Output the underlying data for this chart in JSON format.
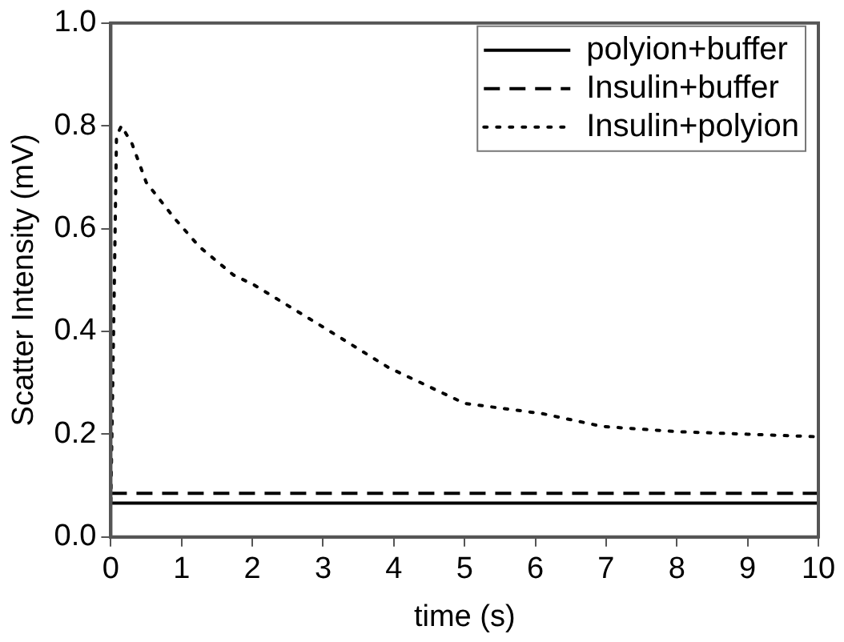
{
  "chart_data": {
    "type": "line",
    "xlabel": "time (s)",
    "ylabel": "Scatter Intensity (mV)",
    "xlim": [
      0,
      10
    ],
    "xticks": [
      0,
      1,
      2,
      3,
      4,
      5,
      6,
      7,
      8,
      9,
      10
    ],
    "ylim": [
      0,
      1
    ],
    "yticks": [
      {
        "value": 0,
        "label": "0.0"
      },
      0.2,
      0.4,
      0.6,
      0.8,
      {
        "value": 1,
        "label": "1.0"
      }
    ],
    "legend": "top right",
    "grid": false,
    "marker": "none",
    "series": [
      {
        "name": "polyion+buffer",
        "color": "#000000",
        "line_style": "solid",
        "x": [
          0,
          10
        ],
        "values": [
          0.066,
          0.066
        ]
      },
      {
        "name": "Insulin+buffer",
        "color": "#000000",
        "line_style": "dashed",
        "x": [
          0,
          10
        ],
        "values": [
          0.085,
          0.085
        ]
      },
      {
        "name": "Insulin+polyion",
        "color": "#000000",
        "line_style": "dotted",
        "x": [
          0,
          0.05,
          0.08,
          0.15,
          0.3,
          0.5,
          0.9,
          1.25,
          1.73,
          2.03,
          3.1,
          3.92,
          5,
          6.1,
          6.95,
          8,
          9,
          10
        ],
        "values": [
          0.07,
          0.5,
          0.78,
          0.8,
          0.765,
          0.69,
          0.62,
          0.565,
          0.51,
          0.49,
          0.4,
          0.33,
          0.26,
          0.24,
          0.215,
          0.205,
          0.2,
          0.195
        ]
      }
    ]
  }
}
